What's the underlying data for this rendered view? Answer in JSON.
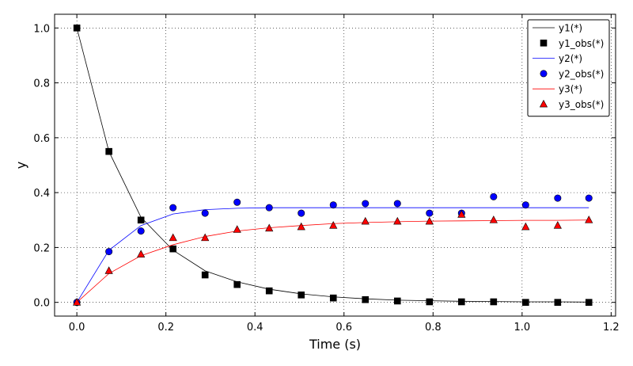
{
  "chart_data": {
    "type": "line",
    "xlabel": "Time (s)",
    "ylabel": "y",
    "xlim": [
      -0.05,
      1.21
    ],
    "ylim": [
      -0.05,
      1.05
    ],
    "xticks": [
      0.0,
      0.2,
      0.4,
      0.6,
      0.8,
      1.0,
      1.2
    ],
    "xtick_labels": [
      "0.0",
      "0.2",
      "0.4",
      "0.6",
      "0.8",
      "1.0",
      "1.2"
    ],
    "yticks": [
      0.0,
      0.2,
      0.4,
      0.6,
      0.8,
      1.0
    ],
    "ytick_labels": [
      "0.0",
      "0.2",
      "0.4",
      "0.6",
      "0.8",
      "1.0"
    ],
    "grid": true,
    "legend_position": "top-right",
    "series": [
      {
        "name": "y1(*)",
        "kind": "line",
        "color": "#000000",
        "x": [
          0.0,
          0.072,
          0.144,
          0.216,
          0.288,
          0.36,
          0.432,
          0.504,
          0.576,
          0.648,
          0.72,
          0.792,
          0.864,
          0.936,
          1.008,
          1.08,
          1.15
        ],
        "y": [
          1.0,
          0.55,
          0.31,
          0.19,
          0.115,
          0.075,
          0.048,
          0.031,
          0.02,
          0.013,
          0.008,
          0.006,
          0.004,
          0.003,
          0.002,
          0.002,
          0.001
        ]
      },
      {
        "name": "y1_obs(*)",
        "kind": "scatter",
        "marker": "square",
        "color": "#000000",
        "x": [
          0.0,
          0.072,
          0.144,
          0.216,
          0.288,
          0.36,
          0.432,
          0.504,
          0.576,
          0.648,
          0.72,
          0.792,
          0.864,
          0.936,
          1.008,
          1.08,
          1.15
        ],
        "y": [
          1.0,
          0.55,
          0.3,
          0.195,
          0.1,
          0.065,
          0.042,
          0.027,
          0.016,
          0.01,
          0.005,
          0.002,
          0.002,
          0.002,
          0.0,
          0.0,
          0.0
        ]
      },
      {
        "name": "y2(*)",
        "kind": "line",
        "color": "#0000ff",
        "x": [
          0.0,
          0.072,
          0.144,
          0.216,
          0.288,
          0.36,
          0.432,
          0.504,
          0.576,
          0.648,
          0.72,
          0.792,
          0.864,
          0.936,
          1.008,
          1.08,
          1.15
        ],
        "y": [
          0.0,
          0.19,
          0.28,
          0.322,
          0.338,
          0.343,
          0.345,
          0.345,
          0.345,
          0.345,
          0.345,
          0.345,
          0.345,
          0.345,
          0.345,
          0.345,
          0.345
        ]
      },
      {
        "name": "y2_obs(*)",
        "kind": "scatter",
        "marker": "circle",
        "color": "#0000ff",
        "x": [
          0.0,
          0.072,
          0.144,
          0.216,
          0.288,
          0.36,
          0.432,
          0.504,
          0.576,
          0.648,
          0.72,
          0.792,
          0.864,
          0.936,
          1.008,
          1.08,
          1.15
        ],
        "y": [
          0.0,
          0.185,
          0.26,
          0.345,
          0.325,
          0.365,
          0.345,
          0.325,
          0.355,
          0.36,
          0.36,
          0.325,
          0.325,
          0.385,
          0.355,
          0.38,
          0.38
        ]
      },
      {
        "name": "y3(*)",
        "kind": "line",
        "color": "#ff0000",
        "x": [
          0.0,
          0.072,
          0.144,
          0.216,
          0.288,
          0.36,
          0.432,
          0.504,
          0.576,
          0.648,
          0.72,
          0.792,
          0.864,
          0.936,
          1.008,
          1.08,
          1.15
        ],
        "y": [
          0.0,
          0.105,
          0.17,
          0.21,
          0.24,
          0.26,
          0.272,
          0.28,
          0.287,
          0.291,
          0.294,
          0.296,
          0.297,
          0.298,
          0.299,
          0.299,
          0.3
        ]
      },
      {
        "name": "y3_obs(*)",
        "kind": "scatter",
        "marker": "triangle",
        "color": "#ff0000",
        "x": [
          0.0,
          0.072,
          0.144,
          0.216,
          0.288,
          0.36,
          0.432,
          0.504,
          0.576,
          0.648,
          0.72,
          0.792,
          0.864,
          0.936,
          1.008,
          1.08,
          1.15
        ],
        "y": [
          0.0,
          0.115,
          0.175,
          0.235,
          0.235,
          0.265,
          0.27,
          0.275,
          0.28,
          0.295,
          0.295,
          0.295,
          0.32,
          0.3,
          0.275,
          0.28,
          0.3
        ]
      }
    ]
  }
}
